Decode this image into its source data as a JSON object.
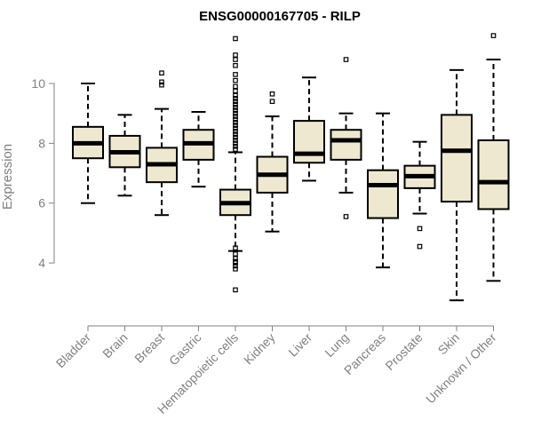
{
  "chart_data": {
    "type": "boxplot",
    "title": "ENSG00000167705 - RILP",
    "xlabel": "",
    "ylabel": "Expression",
    "ylim": [
      2.4,
      11.9
    ],
    "yticks": [
      4,
      6,
      8,
      10
    ],
    "colors": {
      "box_fill": "#EEE8D0",
      "stroke": "#000000",
      "axis": "#808080",
      "label": "#808080"
    },
    "categories": [
      "Bladder",
      "Brain",
      "Breast",
      "Gastric",
      "Hematopoietic cells",
      "Kidney",
      "Liver",
      "Lung",
      "Pancreas",
      "Prostate",
      "Skin",
      "Unknown / Other"
    ],
    "boxes": [
      {
        "label": "Bladder",
        "whisker_low": 6.0,
        "q1": 7.5,
        "median": 8.0,
        "q3": 8.55,
        "whisker_high": 10.0,
        "outliers": []
      },
      {
        "label": "Brain",
        "whisker_low": 6.25,
        "q1": 7.2,
        "median": 7.7,
        "q3": 8.25,
        "whisker_high": 8.95,
        "outliers": []
      },
      {
        "label": "Breast",
        "whisker_low": 5.6,
        "q1": 6.7,
        "median": 7.3,
        "q3": 7.85,
        "whisker_high": 9.15,
        "outliers": [
          9.95,
          10.05,
          10.35
        ]
      },
      {
        "label": "Gastric",
        "whisker_low": 6.55,
        "q1": 7.45,
        "median": 8.0,
        "q3": 8.45,
        "whisker_high": 9.05,
        "outliers": []
      },
      {
        "label": "Hematopoietic cells",
        "whisker_low": 4.4,
        "q1": 5.6,
        "median": 6.0,
        "q3": 6.45,
        "whisker_high": 7.7,
        "outliers": [
          3.1,
          3.8,
          3.9,
          4.0,
          4.05,
          4.15,
          4.3,
          4.5,
          7.8,
          7.9,
          8.0,
          8.1,
          8.2,
          8.3,
          8.4,
          8.5,
          8.6,
          8.7,
          8.8,
          8.9,
          9.0,
          9.1,
          9.2,
          9.3,
          9.4,
          9.5,
          9.6,
          9.75,
          9.9,
          10.1,
          10.3,
          10.6,
          10.8,
          10.95,
          11.5
        ]
      },
      {
        "label": "Kidney",
        "whisker_low": 5.05,
        "q1": 6.35,
        "median": 6.95,
        "q3": 7.55,
        "whisker_high": 8.9,
        "outliers": [
          9.4,
          9.65
        ]
      },
      {
        "label": "Liver",
        "whisker_low": 6.75,
        "q1": 7.35,
        "median": 7.65,
        "q3": 8.75,
        "whisker_high": 10.2,
        "outliers": []
      },
      {
        "label": "Lung",
        "whisker_low": 6.35,
        "q1": 7.45,
        "median": 8.1,
        "q3": 8.45,
        "whisker_high": 9.0,
        "outliers": [
          5.55,
          10.8
        ]
      },
      {
        "label": "Pancreas",
        "whisker_low": 3.85,
        "q1": 5.5,
        "median": 6.6,
        "q3": 7.1,
        "whisker_high": 9.0,
        "outliers": []
      },
      {
        "label": "Prostate",
        "whisker_low": 5.65,
        "q1": 6.5,
        "median": 6.9,
        "q3": 7.25,
        "whisker_high": 8.05,
        "outliers": [
          4.55,
          5.15
        ]
      },
      {
        "label": "Skin",
        "whisker_low": 2.75,
        "q1": 6.05,
        "median": 7.75,
        "q3": 8.95,
        "whisker_high": 10.45,
        "outliers": []
      },
      {
        "label": "Unknown / Other",
        "whisker_low": 3.4,
        "q1": 5.8,
        "median": 6.7,
        "q3": 8.1,
        "whisker_high": 10.8,
        "outliers": [
          11.6
        ]
      }
    ]
  }
}
